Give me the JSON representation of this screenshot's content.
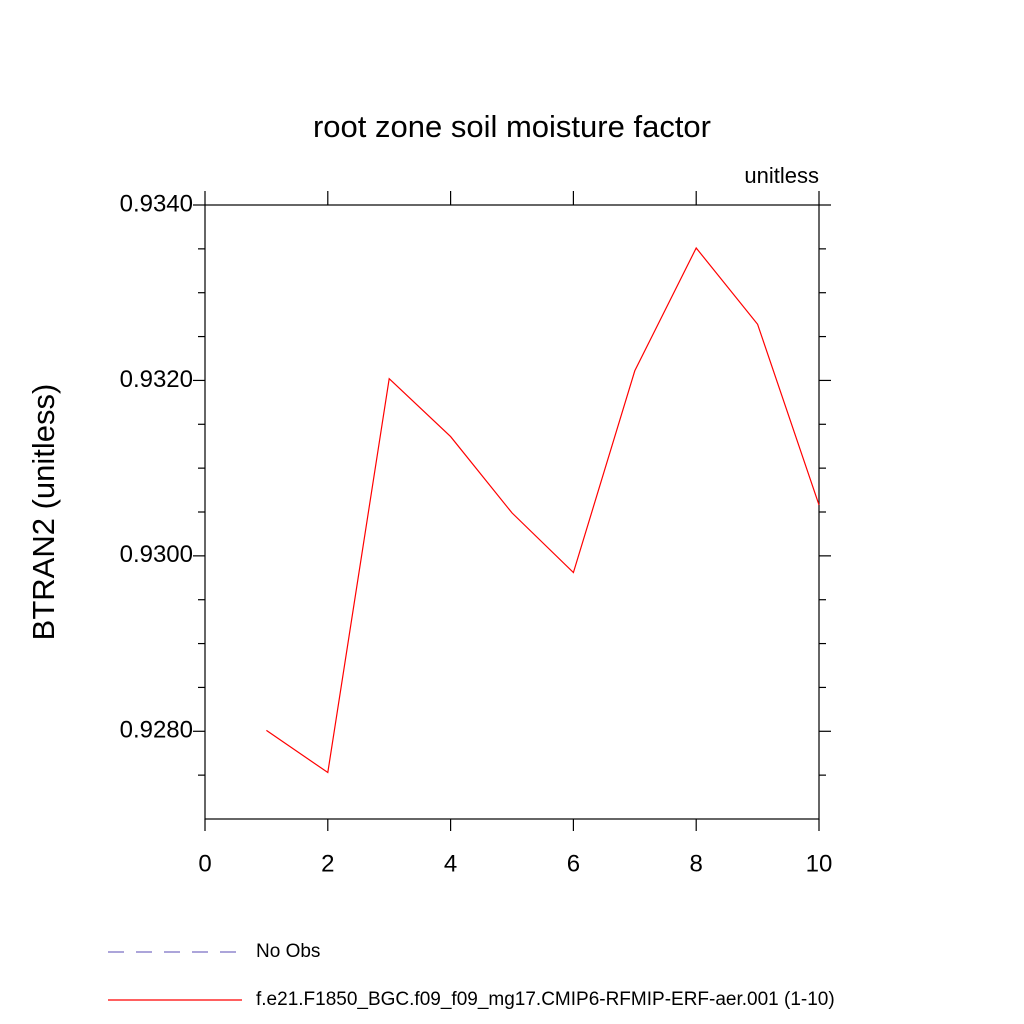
{
  "chart_data": {
    "type": "line",
    "title": "root zone soil moisture factor",
    "units_label": "unitless",
    "y_label": "BTRAN2  (unitless)",
    "x": [
      1,
      2,
      3,
      4,
      5,
      6,
      7,
      8,
      9,
      10
    ],
    "series": [
      {
        "name": "No Obs",
        "color": "#7b6fc4",
        "dash": true,
        "values": [
          null,
          null,
          null,
          null,
          null,
          null,
          null,
          null,
          null,
          null
        ]
      },
      {
        "name": "f.e21.F1850_BGC.f09_f09_mg17.CMIP6-RFMIP-ERF-aer.001 (1-10)",
        "color": "#ff0000",
        "dash": false,
        "values": [
          0.92801,
          0.92753,
          0.93202,
          0.93136,
          0.93049,
          0.92981,
          0.93211,
          0.93351,
          0.93264,
          0.93058
        ]
      }
    ],
    "xlim": [
      0,
      10
    ],
    "ylim": [
      0.927,
      0.934
    ],
    "xticks": [
      0,
      2,
      4,
      6,
      8,
      10
    ],
    "yticks": [
      {
        "value": 0.928,
        "label": "0.9280"
      },
      {
        "value": 0.93,
        "label": "0.9300"
      },
      {
        "value": 0.932,
        "label": "0.9320"
      },
      {
        "value": 0.934,
        "label": "0.9340"
      }
    ],
    "yminorticks": [
      0.9275,
      0.9285,
      0.929,
      0.9295,
      0.9305,
      0.931,
      0.9315,
      0.9325,
      0.933,
      0.9335
    ]
  }
}
